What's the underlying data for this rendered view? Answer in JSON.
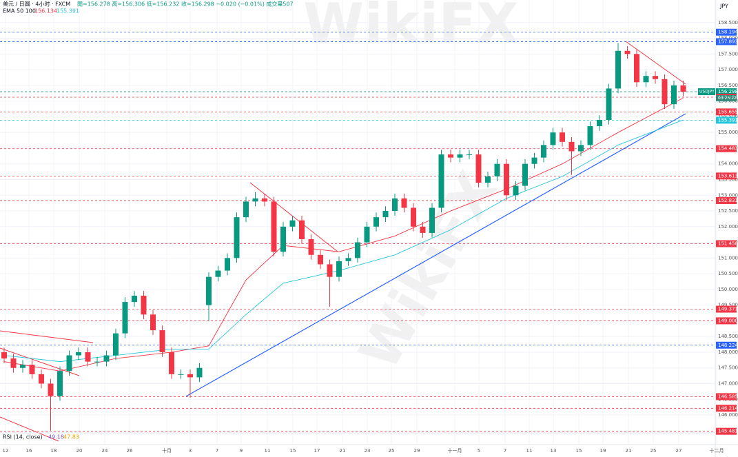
{
  "header": {
    "symbol": "美元 / 日圆 · 4小时 · FXCM",
    "ohlc": "開=156.278 高=156.306 低=156.232 收=156.298 −0.020 (−0.01%) 成交量507",
    "ema_label": "EMA 50 100",
    "ema50_value": "156.134",
    "ema100_value": "155.391",
    "currency": "JPY",
    "symbol_tag": "USDJPY",
    "countdown": "03:25:22",
    "rsi_label": "RSI (14, close)",
    "rsi_value_1": "49.18",
    "rsi_value_2": "47.83",
    "watermark": "WikiFX"
  },
  "chart_data": {
    "type": "candlestick",
    "open": [
      148.0,
      147.8,
      147.5,
      147.6,
      147.3,
      147.0,
      146.6,
      147.4,
      147.9,
      148.0,
      147.7,
      147.7,
      147.9,
      148.6,
      149.6,
      149.8,
      149.2,
      148.7,
      148.0,
      147.3,
      147.3,
      147.2,
      149.5,
      150.4,
      150.6,
      151.0,
      152.3,
      152.8,
      152.9,
      152.8,
      151.2,
      152.0,
      152.2,
      151.6,
      151.1,
      150.8,
      150.4,
      150.9,
      151.0,
      151.5,
      152.0,
      152.3,
      152.5,
      152.9,
      152.6,
      152.0,
      151.8,
      152.6,
      154.3,
      154.2,
      154.3,
      154.3,
      153.4,
      153.6,
      154.0,
      153.0,
      153.3,
      154.0,
      154.2,
      154.6,
      155.0,
      154.7,
      154.4,
      154.6,
      155.2,
      155.4,
      156.4,
      157.6,
      157.5,
      156.6,
      156.8,
      156.7,
      155.9,
      156.5
    ],
    "high": [
      148.15,
      147.95,
      147.75,
      147.75,
      147.45,
      147.15,
      147.55,
      148.05,
      148.15,
      148.15,
      147.85,
      148.05,
      148.75,
      149.75,
      149.95,
      149.95,
      149.35,
      148.85,
      148.15,
      147.45,
      147.45,
      147.65,
      150.55,
      150.75,
      151.15,
      152.45,
      152.95,
      153.1,
      153.05,
      152.95,
      152.15,
      152.35,
      152.35,
      151.75,
      151.25,
      150.95,
      151.05,
      151.15,
      151.65,
      152.15,
      152.45,
      152.65,
      153.05,
      153.05,
      152.75,
      152.15,
      152.75,
      154.45,
      154.45,
      154.45,
      154.45,
      154.45,
      153.75,
      154.15,
      154.15,
      153.45,
      154.15,
      154.35,
      154.75,
      155.15,
      155.15,
      154.85,
      154.75,
      155.35,
      155.55,
      156.55,
      157.85,
      157.75,
      157.65,
      156.95,
      156.95,
      156.85,
      156.65,
      156.65
    ],
    "low": [
      147.65,
      147.35,
      147.35,
      147.15,
      146.85,
      145.5,
      146.45,
      147.25,
      147.75,
      147.55,
      147.55,
      147.55,
      147.75,
      148.45,
      149.45,
      149.05,
      148.55,
      147.85,
      147.15,
      147.15,
      146.55,
      147.05,
      149.0,
      150.25,
      150.45,
      150.85,
      152.15,
      152.65,
      152.65,
      151.05,
      151.05,
      151.85,
      151.45,
      150.95,
      150.65,
      149.45,
      150.25,
      150.75,
      150.85,
      151.35,
      151.85,
      152.15,
      152.35,
      152.45,
      151.85,
      151.65,
      151.65,
      152.45,
      154.05,
      154.05,
      154.15,
      153.25,
      153.25,
      153.45,
      152.85,
      152.85,
      153.15,
      153.85,
      154.05,
      154.45,
      154.55,
      153.65,
      154.25,
      154.45,
      155.05,
      155.25,
      156.25,
      157.35,
      156.45,
      156.45,
      156.55,
      155.75,
      155.75,
      156.15
    ],
    "close": [
      147.8,
      147.5,
      147.6,
      147.3,
      147.0,
      146.6,
      147.4,
      147.9,
      148.0,
      147.7,
      147.7,
      147.9,
      148.6,
      149.6,
      149.8,
      149.2,
      148.7,
      148.0,
      147.3,
      147.3,
      147.2,
      147.5,
      150.4,
      150.6,
      151.0,
      152.3,
      152.8,
      152.9,
      152.8,
      151.2,
      152.0,
      152.2,
      151.6,
      151.1,
      150.8,
      150.4,
      150.9,
      151.0,
      151.5,
      152.0,
      152.3,
      152.5,
      152.9,
      152.6,
      152.0,
      151.8,
      152.6,
      154.3,
      154.2,
      154.3,
      154.3,
      153.4,
      153.6,
      154.0,
      153.0,
      153.3,
      154.0,
      154.2,
      154.6,
      155.0,
      154.7,
      154.4,
      154.6,
      155.2,
      155.4,
      156.4,
      157.6,
      157.5,
      156.6,
      156.8,
      156.7,
      155.9,
      156.5,
      156.3
    ],
    "up_color": "#089981",
    "down_color": "#f23645",
    "series": [
      {
        "color": "#f23645",
        "x": [
          0,
          6,
          12,
          18,
          22,
          26,
          30,
          36,
          42,
          48,
          54,
          60,
          66,
          73
        ],
        "values": [
          147.7,
          147.4,
          147.8,
          148.0,
          148.2,
          150.3,
          151.4,
          151.2,
          151.7,
          152.5,
          153.2,
          154.0,
          155.0,
          156.1
        ]
      },
      {
        "color": "#26c6da",
        "x": [
          0,
          6,
          12,
          18,
          22,
          26,
          30,
          36,
          42,
          48,
          54,
          60,
          66,
          73
        ],
        "values": [
          147.9,
          147.7,
          147.9,
          148.1,
          148.1,
          149.2,
          150.2,
          150.6,
          151.1,
          151.9,
          152.9,
          153.6,
          154.6,
          155.4
        ]
      }
    ],
    "xlabels": [
      "12",
      "16",
      "18",
      "20",
      "24",
      "26",
      "十月",
      "3",
      "7",
      "9",
      "11",
      "15",
      "17",
      "21",
      "23",
      "25",
      "29",
      "十一月",
      "5",
      "7",
      "11",
      "13",
      "15",
      "19",
      "21",
      "25",
      "27",
      "十二月"
    ],
    "ylim": [
      145.43,
      159.22
    ],
    "yticks": [
      {
        "value": 146,
        "label": "146.000"
      },
      {
        "value": 146.5,
        "label": "146.500"
      },
      {
        "value": 147,
        "label": "147.000"
      },
      {
        "value": 147.5,
        "label": "147.500"
      },
      {
        "value": 148,
        "label": "148.000"
      },
      {
        "value": 148.5,
        "label": "148.500"
      },
      {
        "value": 149,
        "label": "149.000"
      },
      {
        "value": 149.5,
        "label": "149.500"
      },
      {
        "value": 150,
        "label": "150.000"
      },
      {
        "value": 150.5,
        "label": "150.500"
      },
      {
        "value": 151,
        "label": "151.000"
      },
      {
        "value": 151.5,
        "label": "151.500"
      },
      {
        "value": 152,
        "label": "152.000"
      },
      {
        "value": 152.5,
        "label": "152.500"
      },
      {
        "value": 153,
        "label": "153.000"
      },
      {
        "value": 153.5,
        "label": "153.500"
      },
      {
        "value": 154,
        "label": "154.000"
      },
      {
        "value": 154.5,
        "label": "154.500"
      },
      {
        "value": 155,
        "label": "155.000"
      },
      {
        "value": 155.5,
        "label": "155.500"
      },
      {
        "value": 156,
        "label": "156.000"
      },
      {
        "value": 156.5,
        "label": "156.500"
      },
      {
        "value": 157,
        "label": "157.000"
      },
      {
        "value": 157.5,
        "label": "157.500"
      },
      {
        "value": 158,
        "label": "158.000"
      },
      {
        "value": 158.5,
        "label": "158.500"
      }
    ],
    "levels": [
      {
        "value": 158.194,
        "color": "#2962ff"
      },
      {
        "value": 157.893,
        "color": "#2962ff"
      },
      {
        "value": 156.298,
        "color": "#089981"
      },
      {
        "value": 156.124,
        "color": "#f23645"
      },
      {
        "value": 155.655,
        "color": "#f23645"
      },
      {
        "value": 155.391,
        "color": "#26c6da"
      },
      {
        "value": 154.483,
        "color": "#f23645"
      },
      {
        "value": 153.613,
        "color": "#f23645"
      },
      {
        "value": 152.831,
        "color": "#f23645"
      },
      {
        "value": 151.458,
        "color": "#f23645"
      },
      {
        "value": 149.371,
        "color": "#f23645"
      },
      {
        "value": 149,
        "label": "149.000",
        "color": "#f23645"
      },
      {
        "value": 148.224,
        "color": "#2962ff"
      },
      {
        "value": 146.585,
        "color": "#f23645"
      },
      {
        "value": 146.214,
        "color": "#f23645"
      },
      {
        "value": 145.481,
        "color": "#f23645"
      }
    ],
    "grid": true
  }
}
